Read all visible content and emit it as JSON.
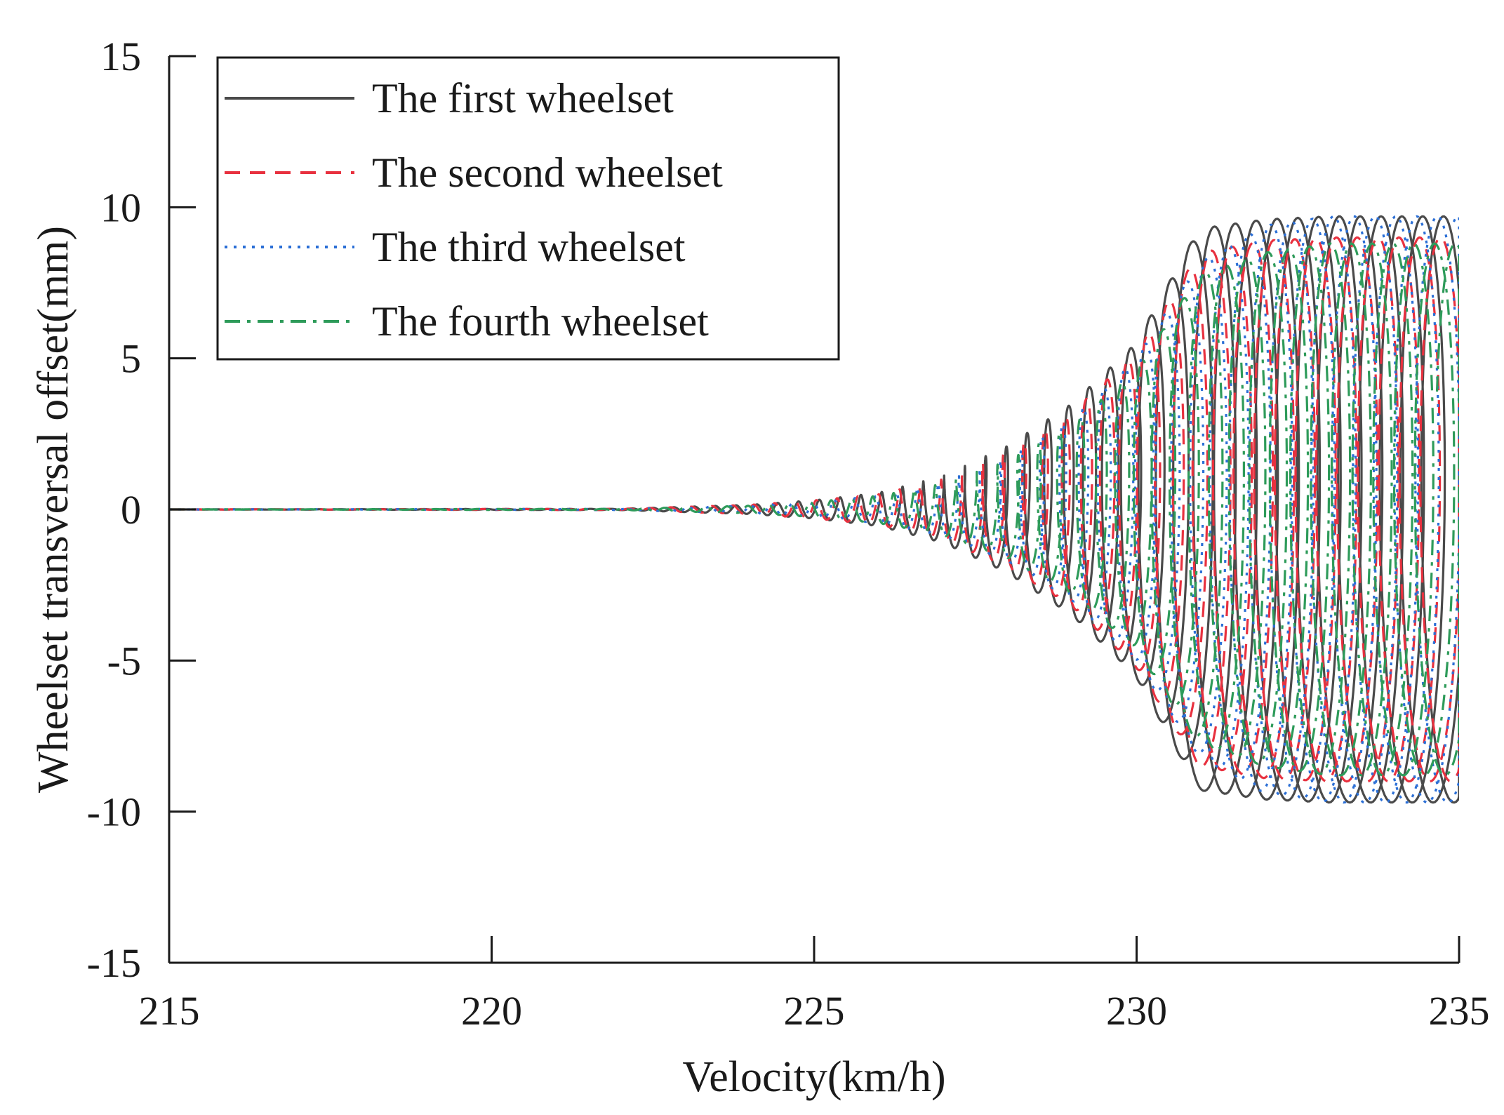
{
  "chart_data": {
    "type": "line",
    "title": "",
    "xlabel": "Velocity(km/h)",
    "ylabel": "Wheelset transversal offset(mm)",
    "xlim": [
      215,
      235
    ],
    "ylim": [
      -15,
      15
    ],
    "xticks": [
      215,
      220,
      225,
      230,
      235
    ],
    "yticks": [
      15,
      10,
      5,
      0,
      -5,
      -10,
      -15
    ],
    "xtick_labels": [
      "215",
      "220",
      "225",
      "230",
      "235"
    ],
    "ytick_labels": [
      "15",
      "10",
      "5",
      "0",
      "-5",
      "-10",
      "-15"
    ],
    "grid": false,
    "legend_position": "top-left",
    "series": [
      {
        "name": "The first wheelset",
        "color": "#4a4a4a",
        "dash": "solid",
        "envelope": {
          "x": [
            215,
            222,
            224,
            225,
            226,
            227,
            228,
            229,
            230,
            231,
            232,
            233,
            234,
            235
          ],
          "amp": [
            0,
            0.02,
            0.15,
            0.3,
            0.55,
            1.1,
            2.1,
            3.5,
            5.5,
            9.3,
            9.6,
            9.7,
            9.7,
            9.7
          ]
        }
      },
      {
        "name": "The second wheelset",
        "color": "#e8313f",
        "dash": "dashed",
        "envelope": {
          "x": [
            215,
            222,
            224,
            225,
            226,
            227,
            228,
            229,
            230,
            231,
            232,
            233,
            234,
            235
          ],
          "amp": [
            0,
            0.02,
            0.15,
            0.3,
            0.5,
            1.0,
            1.9,
            3.2,
            5.2,
            8.5,
            8.9,
            9.0,
            9.0,
            9.0
          ]
        }
      },
      {
        "name": "The third wheelset",
        "color": "#2b6fd6",
        "dash": "dotted",
        "envelope": {
          "x": [
            215,
            222,
            224,
            225,
            226,
            227,
            228,
            229,
            230,
            231,
            232,
            233,
            234,
            235
          ],
          "amp": [
            0,
            0.02,
            0.12,
            0.25,
            0.45,
            0.9,
            1.7,
            3.0,
            5.0,
            8.2,
            9.4,
            9.7,
            9.7,
            9.7
          ]
        }
      },
      {
        "name": "The fourth wheelset",
        "color": "#2e9b5a",
        "dash": "dashdot",
        "envelope": {
          "x": [
            215,
            222,
            224,
            225,
            226,
            227,
            228,
            229,
            230,
            231,
            232,
            233,
            234,
            235
          ],
          "amp": [
            0,
            0.02,
            0.12,
            0.25,
            0.45,
            0.85,
            1.6,
            2.8,
            4.6,
            7.8,
            8.5,
            8.8,
            8.8,
            8.8
          ]
        }
      }
    ]
  }
}
